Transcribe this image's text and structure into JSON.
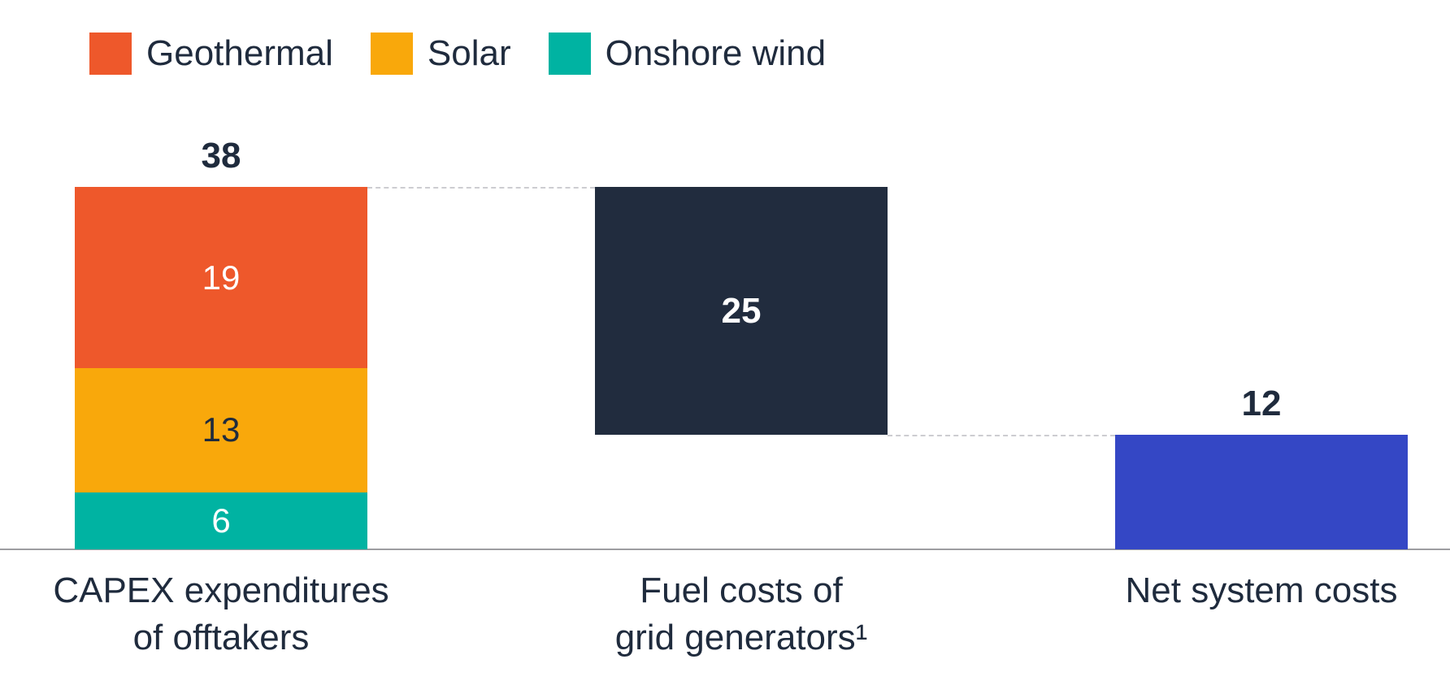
{
  "legend": {
    "items": [
      {
        "label": "Geothermal",
        "color": "#EE582B"
      },
      {
        "label": "Solar",
        "color": "#F9A80B"
      },
      {
        "label": "Onshore wind",
        "color": "#00B3A2"
      }
    ]
  },
  "chart_data": {
    "type": "bar",
    "subtype": "waterfall-stacked-bar",
    "title": "",
    "ylim": [
      0,
      38
    ],
    "grid": false,
    "legend_position": "top-left",
    "text_color": "#1F2B3D",
    "baseline_color": "#9D9DA1",
    "connector_color": "#CDCDD1",
    "categories": [
      "CAPEX expenditures of offtakers",
      "Fuel costs of grid generators¹",
      "Net system costs"
    ],
    "bars": [
      {
        "category_lines": [
          "CAPEX expenditures",
          "of offtakers"
        ],
        "total": 38,
        "segments": [
          {
            "name": "Geothermal",
            "value": 19,
            "color": "#EE582B",
            "label_color": "#FFFFFF"
          },
          {
            "name": "Solar",
            "value": 13,
            "color": "#F9A80B",
            "label_color": "#1F2B3D"
          },
          {
            "name": "Onshore wind",
            "value": 6,
            "color": "#00B3A2",
            "label_color": "#FFFFFF"
          }
        ]
      },
      {
        "category_lines": [
          "Fuel costs of",
          "grid generators¹"
        ],
        "value": 25,
        "floating": true,
        "color": "#212C3E",
        "label_color": "#FFFFFF"
      },
      {
        "category_lines": [
          "Net system costs"
        ],
        "value": 12,
        "color": "#3447C5"
      }
    ],
    "connectors": [
      {
        "between": [
          "bar-0-top",
          "bar-1-top"
        ]
      },
      {
        "between": [
          "bar-1-bottom",
          "bar-2-top"
        ]
      }
    ]
  }
}
